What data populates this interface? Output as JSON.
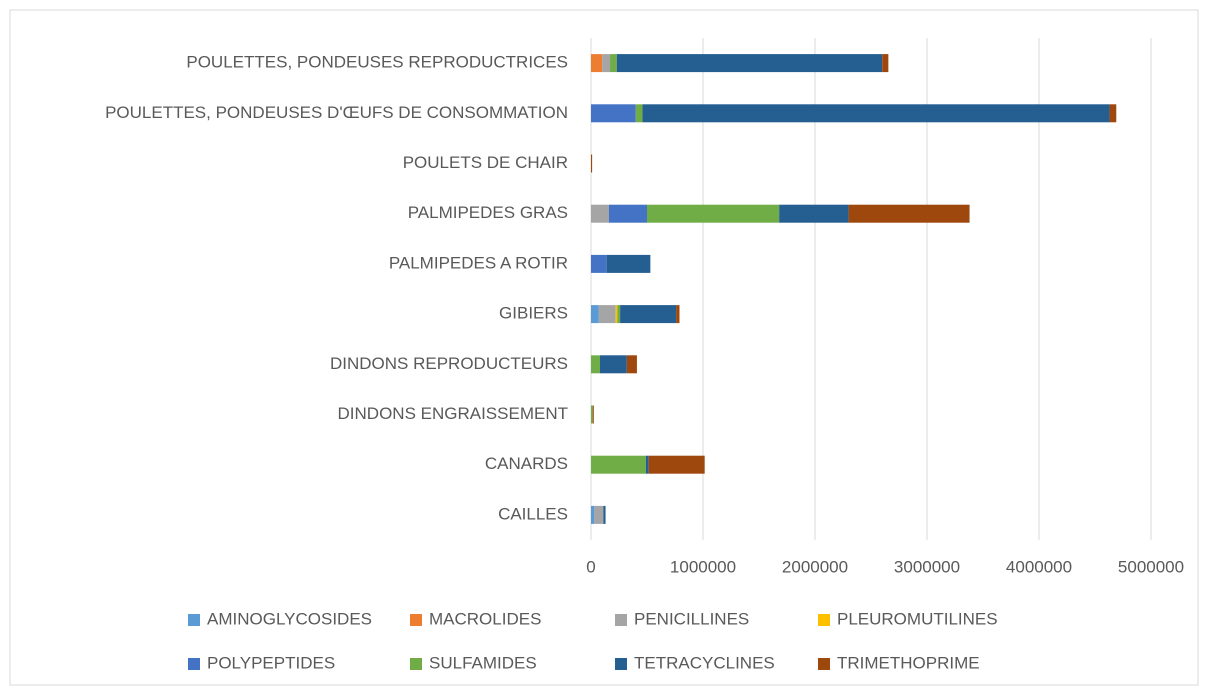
{
  "chart_data": {
    "type": "stacked_barh",
    "categories": [
      "CAILLES",
      "CANARDS",
      "DINDONS ENGRAISSEMENT",
      "DINDONS REPRODUCTEURS",
      "GIBIERS",
      "PALMIPEDES A ROTIR",
      "PALMIPEDES GRAS",
      "POULETS DE CHAIR",
      "POULETTES, PONDEUSES D'ŒUFS DE CONSOMMATION",
      "POULETTES, PONDEUSES REPRODUCTRICES"
    ],
    "series": [
      {
        "name": "AMINOGLYCOSIDES",
        "color": "#5b9bd5",
        "values": [
          30000,
          0,
          0,
          0,
          70000,
          0,
          0,
          0,
          0,
          0
        ]
      },
      {
        "name": "MACROLIDES",
        "color": "#ed7d31",
        "values": [
          0,
          0,
          0,
          0,
          0,
          0,
          0,
          0,
          0,
          100000
        ]
      },
      {
        "name": "PENICILLINES",
        "color": "#a5a5a5",
        "values": [
          80000,
          0,
          0,
          0,
          150000,
          0,
          160000,
          0,
          0,
          70000
        ]
      },
      {
        "name": "PLEUROMUTILINES",
        "color": "#ffc000",
        "values": [
          0,
          0,
          0,
          0,
          15000,
          0,
          0,
          0,
          0,
          0
        ]
      },
      {
        "name": "POLYPEPTIDES",
        "color": "#4472c4",
        "values": [
          0,
          0,
          0,
          0,
          0,
          140000,
          340000,
          0,
          400000,
          0
        ]
      },
      {
        "name": "SULFAMIDES",
        "color": "#70ad47",
        "values": [
          0,
          490000,
          15000,
          80000,
          25000,
          0,
          1180000,
          0,
          60000,
          60000
        ]
      },
      {
        "name": "TETRACYCLINES",
        "color": "#255e91",
        "values": [
          20000,
          25000,
          0,
          240000,
          500000,
          390000,
          620000,
          0,
          4170000,
          2370000
        ]
      },
      {
        "name": "TRIMETHOPRIME",
        "color": "#9e480e",
        "values": [
          0,
          500000,
          10000,
          90000,
          30000,
          0,
          1080000,
          10000,
          60000,
          55000
        ]
      }
    ],
    "xlim": [
      0,
      5000000
    ],
    "xticks": [
      0,
      1000000,
      2000000,
      3000000,
      4000000,
      5000000
    ],
    "grid": true
  }
}
